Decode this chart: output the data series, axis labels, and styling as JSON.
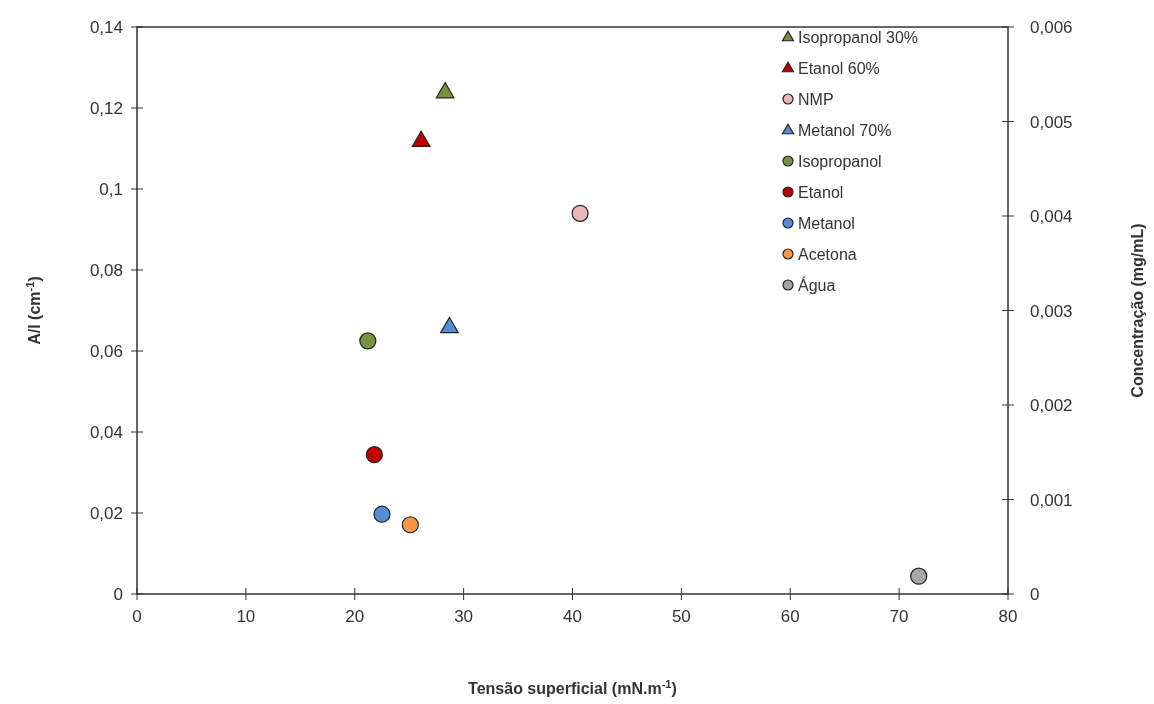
{
  "chart_data": {
    "type": "scatter",
    "xlabel": "Tensão superficial (mN.m$^{-1}$)",
    "ylabel": "A/l (cm$^{-1}$)",
    "y2label": "Concentração  (mg/mL)",
    "xlim": [
      0,
      80
    ],
    "xticks": [
      0,
      10,
      20,
      30,
      40,
      50,
      60,
      70,
      80
    ],
    "ylim": [
      0,
      0.14
    ],
    "yticks": [
      0,
      {
        "value": 0.02,
        "label": "0,02"
      },
      {
        "value": 0.04,
        "label": "0,04"
      },
      {
        "value": 0.06,
        "label": "0,06"
      },
      {
        "value": 0.08,
        "label": "0,08"
      },
      {
        "value": 0.1,
        "label": "0,1"
      },
      {
        "value": 0.12,
        "label": "0,12"
      },
      {
        "value": 0.14,
        "label": "0,14"
      }
    ],
    "y2lim": [
      0,
      0.006
    ],
    "y2ticks": [
      0,
      {
        "value": 0.001,
        "label": "0,001"
      },
      {
        "value": 0.002,
        "label": "0,002"
      },
      {
        "value": 0.003,
        "label": "0,003"
      },
      {
        "value": 0.004,
        "label": "0,004"
      },
      {
        "value": 0.005,
        "label": "0,005"
      },
      {
        "value": 0.006,
        "label": "0,006"
      }
    ],
    "grid": false,
    "legend": "top right",
    "series": [
      {
        "name": "Isopropanol 30%",
        "color": "#77933c",
        "marker": "triangle",
        "x": [
          28.3
        ],
        "values": [
          0.124
        ]
      },
      {
        "name": "Etanol 60%",
        "color": "#c00000",
        "marker": "triangle",
        "x": [
          26.1
        ],
        "values": [
          0.112
        ]
      },
      {
        "name": "NMP",
        "color": "#e6b9b8",
        "marker": "circle",
        "x": [
          40.7
        ],
        "values": [
          0.094
        ]
      },
      {
        "name": "Metanol 70%",
        "color": "#558ed5",
        "marker": "triangle",
        "x": [
          28.7
        ],
        "values": [
          0.066
        ]
      },
      {
        "name": "Isopropanol",
        "color": "#77933c",
        "marker": "circle",
        "x": [
          21.2
        ],
        "values": [
          0.0625
        ]
      },
      {
        "name": "Etanol",
        "color": "#c00000",
        "marker": "circle",
        "x": [
          21.8
        ],
        "values": [
          0.0344
        ]
      },
      {
        "name": "Metanol",
        "color": "#558ed5",
        "marker": "circle",
        "x": [
          22.5
        ],
        "values": [
          0.0197
        ]
      },
      {
        "name": "Acetona",
        "color": "#f79646",
        "marker": "circle",
        "x": [
          25.1
        ],
        "values": [
          0.0171
        ]
      },
      {
        "name": "Água",
        "color": "#a6a6a6",
        "marker": "circle",
        "x": [
          71.8
        ],
        "values": [
          0.0044
        ]
      }
    ]
  }
}
